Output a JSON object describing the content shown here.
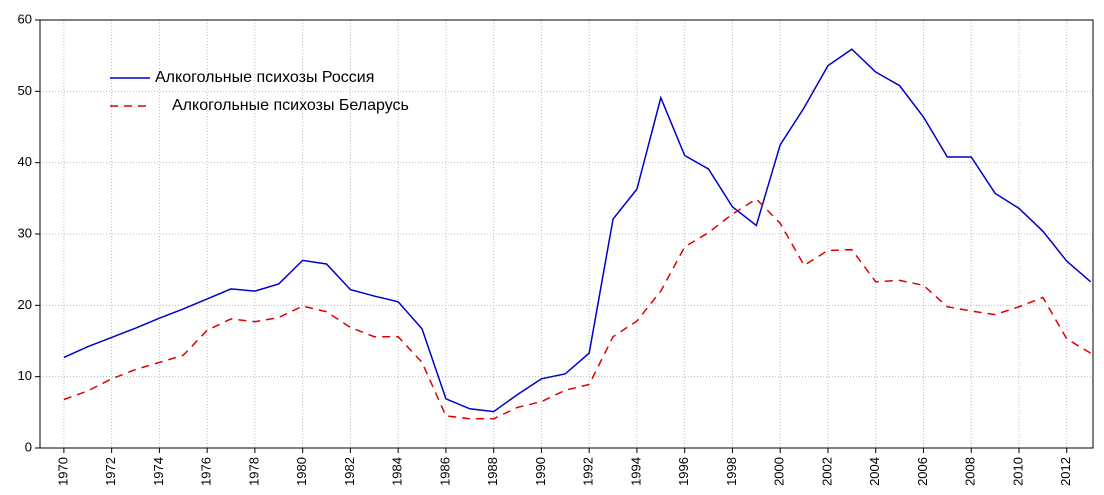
{
  "chart_data": {
    "type": "line",
    "x": [
      1970,
      1971,
      1972,
      1973,
      1974,
      1975,
      1976,
      1977,
      1978,
      1979,
      1980,
      1981,
      1982,
      1983,
      1984,
      1985,
      1986,
      1987,
      1988,
      1989,
      1990,
      1991,
      1992,
      1993,
      1994,
      1995,
      1996,
      1997,
      1998,
      1999,
      2000,
      2001,
      2002,
      2003,
      2004,
      2005,
      2006,
      2007,
      2008,
      2009,
      2010,
      2011,
      2012,
      2013
    ],
    "series": [
      {
        "name": "Алкогольные психозы Россия",
        "color": "#0000cc",
        "dash": false,
        "values": [
          12.7,
          14.2,
          15.5,
          16.8,
          18.2,
          19.5,
          20.9,
          22.3,
          22.0,
          23.0,
          26.3,
          25.8,
          22.2,
          21.3,
          20.5,
          16.7,
          6.9,
          5.5,
          5.1,
          7.5,
          9.7,
          10.4,
          13.3,
          32.1,
          36.3,
          49.1,
          41.0,
          39.1,
          33.8,
          31.2,
          42.5,
          47.7,
          53.6,
          55.9,
          52.7,
          50.8,
          46.4,
          40.8,
          40.8,
          35.7,
          33.6,
          30.4,
          26.2,
          23.3
        ]
      },
      {
        "name": "Алкогольные психозы Беларусь",
        "color": "#e00000",
        "dash": true,
        "values": [
          6.8,
          8.0,
          9.7,
          11.0,
          12.0,
          13.0,
          16.5,
          18.1,
          17.7,
          18.3,
          19.9,
          19.1,
          16.9,
          15.6,
          15.6,
          12.0,
          4.5,
          4.1,
          4.1,
          5.7,
          6.5,
          8.1,
          8.9,
          15.6,
          17.8,
          22.0,
          28.2,
          30.2,
          32.8,
          34.9,
          31.5,
          25.6,
          27.7,
          27.8,
          23.3,
          23.5,
          22.8,
          19.8,
          19.2,
          18.7,
          19.8,
          21.1,
          15.3,
          13.3
        ]
      }
    ],
    "xlim": [
      1969,
      2013.1
    ],
    "xticks": [
      1970,
      1972,
      1974,
      1976,
      1978,
      1980,
      1982,
      1984,
      1986,
      1988,
      1990,
      1992,
      1994,
      1996,
      1998,
      2000,
      2002,
      2004,
      2006,
      2008,
      2010,
      2012
    ],
    "ylim": [
      0,
      60
    ],
    "yticks": [
      0,
      10,
      20,
      30,
      40,
      50,
      60
    ],
    "grid": true,
    "legend": "upper left"
  }
}
